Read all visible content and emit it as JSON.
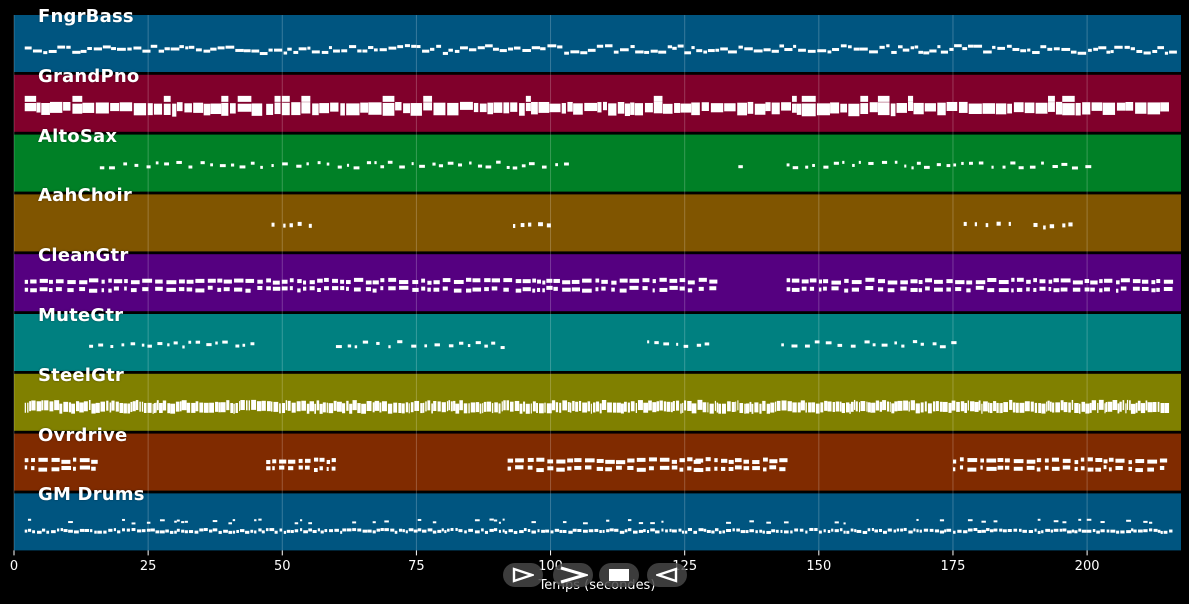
{
  "chart_data": {
    "type": "piano-roll",
    "title": "",
    "xlabel": "Temps (secondes)",
    "ylabel": "",
    "xlim": [
      0,
      217.5
    ],
    "x_ticks": [
      0,
      25,
      50,
      75,
      100,
      125,
      150,
      175,
      200
    ],
    "grid": true,
    "tracks": [
      {
        "name": "FngrBass",
        "color": "#005580",
        "pattern": "bass",
        "segments": [
          [
            2,
            216
          ]
        ]
      },
      {
        "name": "GrandPno",
        "color": "#80002b",
        "pattern": "block",
        "segments": [
          [
            2,
            46
          ],
          [
            47,
            214.5
          ]
        ]
      },
      {
        "name": "AltoSax",
        "color": "#008026",
        "pattern": "sparse",
        "segments": [
          [
            16,
            104
          ],
          [
            135,
            136
          ],
          [
            144,
            201
          ]
        ]
      },
      {
        "name": "AahChoir",
        "color": "#805500",
        "pattern": "phrase",
        "segments": [
          [
            48,
            56
          ],
          [
            93,
            101
          ],
          [
            177,
            186
          ],
          [
            190,
            198
          ]
        ]
      },
      {
        "name": "CleanGtr",
        "color": "#550080",
        "pattern": "double",
        "segments": [
          [
            2,
            46
          ],
          [
            47,
            130
          ],
          [
            144,
            214.5
          ]
        ]
      },
      {
        "name": "MuteGtr",
        "color": "#008080",
        "pattern": "sparse",
        "segments": [
          [
            14,
            46
          ],
          [
            60,
            91
          ],
          [
            118,
            131
          ],
          [
            143,
            175
          ]
        ]
      },
      {
        "name": "SteelGtr",
        "color": "#808000",
        "pattern": "dense",
        "segments": [
          [
            2,
            214.5
          ]
        ]
      },
      {
        "name": "Ovrdrive",
        "color": "#802b00",
        "pattern": "double",
        "segments": [
          [
            2,
            15
          ],
          [
            47,
            60
          ],
          [
            92,
            128
          ],
          [
            127,
            143
          ],
          [
            175,
            214.5
          ]
        ]
      },
      {
        "name": "GM Drums",
        "color": "#005580",
        "pattern": "drums",
        "segments": [
          [
            2,
            216
          ]
        ]
      }
    ]
  },
  "transport": {
    "play_icon": "play-icon",
    "fast_forward_icon": "fast-forward-icon",
    "stop_icon": "stop-icon",
    "rewind_icon": "rewind-icon"
  }
}
